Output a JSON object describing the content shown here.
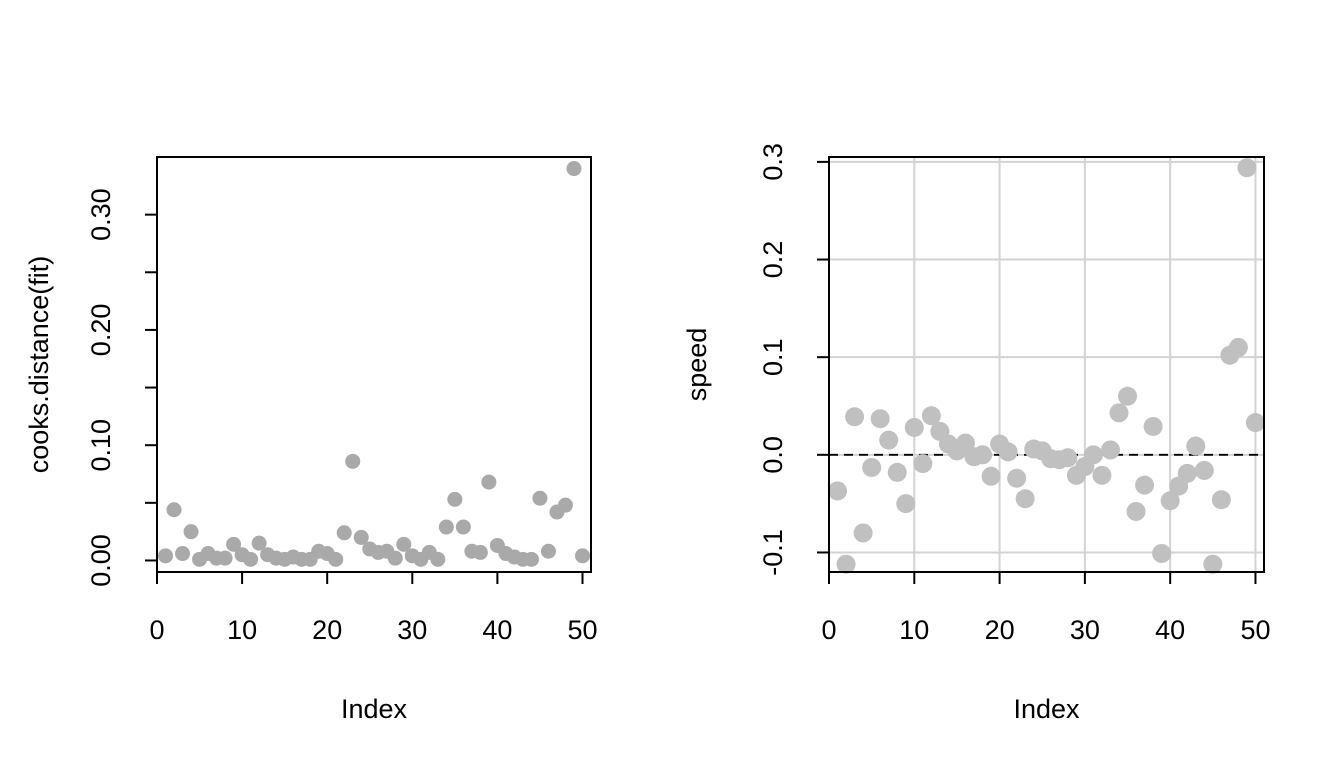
{
  "chart_data": [
    {
      "type": "scatter",
      "xlabel": "Index",
      "ylabel": "cooks.distance(fit)",
      "xlim": [
        0,
        51
      ],
      "ylim": [
        -0.01,
        0.35
      ],
      "x_ticks": [
        0,
        10,
        20,
        30,
        40,
        50
      ],
      "x_tick_labels": [
        "0",
        "10",
        "20",
        "30",
        "40",
        "50"
      ],
      "y_ticks": [
        0,
        0.05,
        0.1,
        0.15,
        0.2,
        0.25,
        0.3
      ],
      "y_tick_labels": [
        "0.00",
        "",
        "0.10",
        "",
        "0.20",
        "",
        "0.30"
      ],
      "grid": false,
      "point_color": "#a9a9a9",
      "x": [
        1,
        2,
        3,
        4,
        5,
        6,
        7,
        8,
        9,
        10,
        11,
        12,
        13,
        14,
        15,
        16,
        17,
        18,
        19,
        20,
        21,
        22,
        23,
        24,
        25,
        26,
        27,
        28,
        29,
        30,
        31,
        32,
        33,
        34,
        35,
        36,
        37,
        38,
        39,
        40,
        41,
        42,
        43,
        44,
        45,
        46,
        47,
        48,
        49,
        50
      ],
      "y": [
        0.004,
        0.044,
        0.006,
        0.025,
        0.001,
        0.006,
        0.002,
        0.002,
        0.014,
        0.005,
        0.001,
        0.015,
        0.005,
        0.002,
        0.001,
        0.003,
        0.001,
        0.001,
        0.008,
        0.006,
        0.001,
        0.024,
        0.086,
        0.02,
        0.01,
        0.007,
        0.008,
        0.002,
        0.014,
        0.004,
        0.001,
        0.007,
        0.001,
        0.029,
        0.053,
        0.029,
        0.008,
        0.007,
        0.068,
        0.013,
        0.006,
        0.003,
        0.001,
        0.001,
        0.054,
        0.008,
        0.042,
        0.048,
        0.34,
        0.004
      ]
    },
    {
      "type": "scatter",
      "xlabel": "Index",
      "ylabel": "speed",
      "xlim": [
        0,
        51
      ],
      "ylim": [
        -0.12,
        0.305
      ],
      "x_ticks": [
        0,
        10,
        20,
        30,
        40,
        50
      ],
      "x_tick_labels": [
        "0",
        "10",
        "20",
        "30",
        "40",
        "50"
      ],
      "y_ticks": [
        -0.1,
        0.0,
        0.1,
        0.2,
        0.3
      ],
      "y_tick_labels": [
        "-0.1",
        "0.0",
        "0.1",
        "0.2",
        "0.3"
      ],
      "grid": true,
      "reference_line": {
        "y": 0,
        "style": "dashed"
      },
      "point_color": "#c0c0c0",
      "x": [
        1,
        2,
        3,
        4,
        5,
        6,
        7,
        8,
        9,
        10,
        11,
        12,
        13,
        14,
        15,
        16,
        17,
        18,
        19,
        20,
        21,
        22,
        23,
        24,
        25,
        26,
        27,
        28,
        29,
        30,
        31,
        32,
        33,
        34,
        35,
        36,
        37,
        38,
        39,
        40,
        41,
        42,
        43,
        44,
        45,
        46,
        47,
        48,
        49,
        50
      ],
      "y": [
        -0.037,
        -0.112,
        0.039,
        -0.08,
        -0.013,
        0.037,
        0.015,
        -0.018,
        -0.05,
        0.028,
        -0.009,
        0.04,
        0.024,
        0.011,
        0.004,
        0.012,
        -0.002,
        0.0,
        -0.022,
        0.011,
        0.003,
        -0.024,
        -0.045,
        0.006,
        0.004,
        -0.004,
        -0.005,
        -0.003,
        -0.021,
        -0.012,
        0.0,
        -0.021,
        0.005,
        0.043,
        0.06,
        -0.058,
        -0.031,
        0.029,
        -0.101,
        -0.047,
        -0.032,
        -0.019,
        0.009,
        -0.016,
        -0.112,
        -0.046,
        0.102,
        0.11,
        0.294,
        0.033
      ]
    }
  ]
}
